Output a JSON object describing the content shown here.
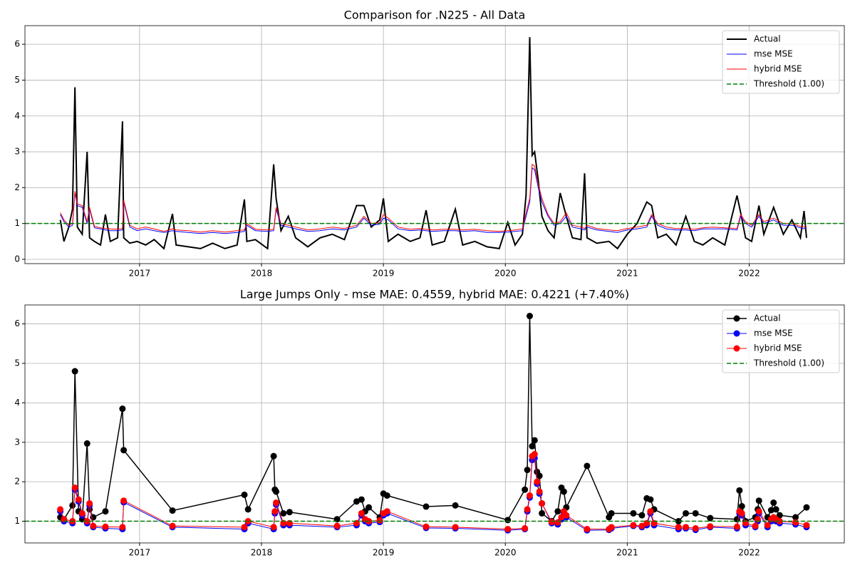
{
  "chart_data": [
    {
      "type": "line",
      "title": "Comparison for .N225 - All Data",
      "markers": false,
      "grid": true,
      "legend": "upper right",
      "xlim": [
        2016.06,
        2022.78
      ],
      "xticks": [
        2017,
        2018,
        2019,
        2020,
        2021,
        2022
      ],
      "ylim": [
        -0.12,
        6.52
      ],
      "yticks": [
        0,
        1,
        2,
        3,
        4,
        5,
        6
      ],
      "threshold": {
        "name": "Threshold (1.00)",
        "value": 1,
        "color": "#008000"
      },
      "x": [
        2016.35,
        2016.38,
        2016.42,
        2016.45,
        2016.47,
        2016.49,
        2016.53,
        2016.57,
        2016.59,
        2016.63,
        2016.68,
        2016.72,
        2016.76,
        2016.82,
        2016.86,
        2016.87,
        2016.92,
        2016.98,
        2017.05,
        2017.12,
        2017.2,
        2017.27,
        2017.3,
        2017.4,
        2017.5,
        2017.6,
        2017.7,
        2017.8,
        2017.86,
        2017.88,
        2017.95,
        2018.05,
        2018.1,
        2018.12,
        2018.16,
        2018.22,
        2018.28,
        2018.38,
        2018.48,
        2018.58,
        2018.68,
        2018.78,
        2018.84,
        2018.9,
        2018.97,
        2019.0,
        2019.04,
        2019.12,
        2019.22,
        2019.3,
        2019.35,
        2019.4,
        2019.5,
        2019.59,
        2019.65,
        2019.75,
        2019.85,
        2019.95,
        2020.02,
        2020.08,
        2020.14,
        2020.17,
        2020.2,
        2020.22,
        2020.24,
        2020.27,
        2020.3,
        2020.35,
        2020.4,
        2020.45,
        2020.5,
        2020.55,
        2020.62,
        2020.65,
        2020.67,
        2020.75,
        2020.85,
        2020.92,
        2021.0,
        2021.08,
        2021.16,
        2021.2,
        2021.25,
        2021.32,
        2021.4,
        2021.48,
        2021.55,
        2021.62,
        2021.7,
        2021.8,
        2021.9,
        2021.93,
        2021.97,
        2022.02,
        2022.08,
        2022.12,
        2022.2,
        2022.28,
        2022.35,
        2022.42,
        2022.45,
        2022.47
      ],
      "series": [
        {
          "name": "Actual",
          "color": "#000000",
          "width": 2,
          "values": [
            1.1,
            0.5,
            0.9,
            1.4,
            4.8,
            0.9,
            0.7,
            3.0,
            0.6,
            0.5,
            0.4,
            1.25,
            0.5,
            0.6,
            3.85,
            0.6,
            0.45,
            0.5,
            0.4,
            0.55,
            0.3,
            1.27,
            0.4,
            0.35,
            0.3,
            0.45,
            0.3,
            0.4,
            1.67,
            0.5,
            0.55,
            0.3,
            2.65,
            1.7,
            0.8,
            1.2,
            0.6,
            0.35,
            0.6,
            0.7,
            0.55,
            1.5,
            1.5,
            0.9,
            1.1,
            1.7,
            0.5,
            0.7,
            0.5,
            0.6,
            1.37,
            0.4,
            0.5,
            1.4,
            0.4,
            0.5,
            0.35,
            0.3,
            1.03,
            0.4,
            0.7,
            1.8,
            6.2,
            2.9,
            3.0,
            2.2,
            1.2,
            0.8,
            0.6,
            1.85,
            1.2,
            0.6,
            0.55,
            2.4,
            0.6,
            0.45,
            0.5,
            0.3,
            0.7,
            1.0,
            1.6,
            1.5,
            0.6,
            0.7,
            0.4,
            1.2,
            0.5,
            0.4,
            0.6,
            0.4,
            1.78,
            1.3,
            0.6,
            0.5,
            1.5,
            0.7,
            1.45,
            0.7,
            1.1,
            0.6,
            1.35,
            0.6
          ]
        },
        {
          "name": "mse MSE",
          "color": "#0000ff",
          "width": 1,
          "values": [
            1.25,
            1.05,
            0.9,
            0.95,
            1.85,
            1.5,
            1.45,
            1.0,
            1.4,
            0.88,
            0.85,
            0.82,
            0.8,
            0.8,
            0.82,
            1.6,
            0.9,
            0.8,
            0.85,
            0.8,
            0.75,
            0.8,
            0.78,
            0.75,
            0.72,
            0.75,
            0.72,
            0.75,
            0.78,
            0.95,
            0.8,
            0.78,
            0.8,
            1.4,
            0.95,
            0.9,
            0.85,
            0.78,
            0.8,
            0.85,
            0.82,
            0.9,
            1.15,
            0.95,
            0.98,
            1.15,
            1.1,
            0.85,
            0.8,
            0.82,
            0.8,
            0.78,
            0.8,
            0.8,
            0.78,
            0.8,
            0.75,
            0.75,
            0.76,
            0.78,
            0.8,
            1.2,
            1.6,
            2.55,
            2.5,
            2.0,
            1.6,
            1.2,
            0.95,
            1.0,
            1.2,
            0.9,
            0.85,
            0.82,
            0.9,
            0.82,
            0.78,
            0.75,
            0.82,
            0.85,
            0.9,
            1.2,
            0.95,
            0.85,
            0.82,
            0.82,
            0.8,
            0.85,
            0.85,
            0.85,
            0.82,
            1.2,
            1.0,
            0.9,
            1.2,
            1.0,
            1.1,
            0.95,
            0.95,
            0.88,
            0.85,
            0.88
          ]
        },
        {
          "name": "hybrid MSE",
          "color": "#ff0000",
          "width": 1,
          "values": [
            1.3,
            1.1,
            0.95,
            1.0,
            1.9,
            1.55,
            1.5,
            1.05,
            1.45,
            0.92,
            0.88,
            0.86,
            0.85,
            0.84,
            0.86,
            1.65,
            0.95,
            0.85,
            0.9,
            0.85,
            0.78,
            0.85,
            0.82,
            0.8,
            0.76,
            0.8,
            0.76,
            0.8,
            0.82,
            1.0,
            0.84,
            0.82,
            0.84,
            1.45,
            1.0,
            0.95,
            0.9,
            0.82,
            0.85,
            0.9,
            0.86,
            0.95,
            1.2,
            1.0,
            1.02,
            1.25,
            1.15,
            0.9,
            0.84,
            0.86,
            0.84,
            0.82,
            0.84,
            0.84,
            0.82,
            0.84,
            0.8,
            0.78,
            0.8,
            0.82,
            0.85,
            1.3,
            1.7,
            2.65,
            2.6,
            2.1,
            1.7,
            1.25,
            1.0,
            1.05,
            1.3,
            0.95,
            0.9,
            0.86,
            0.95,
            0.86,
            0.82,
            0.8,
            0.86,
            0.9,
            0.95,
            1.25,
            1.0,
            0.9,
            0.86,
            0.86,
            0.84,
            0.88,
            0.9,
            0.88,
            0.86,
            1.25,
            1.05,
            0.95,
            1.25,
            1.05,
            1.15,
            1.0,
            1.0,
            0.92,
            0.9,
            0.92
          ]
        }
      ]
    },
    {
      "type": "line",
      "title": "Large Jumps Only - mse MAE: 0.4559, hybrid MAE: 0.4221 (+7.40%)",
      "markers": true,
      "grid": true,
      "legend": "upper right",
      "xlim": [
        2016.06,
        2022.78
      ],
      "xticks": [
        2017,
        2018,
        2019,
        2020,
        2021,
        2022
      ],
      "ylim": [
        0.45,
        6.48
      ],
      "yticks": [
        1,
        2,
        3,
        4,
        5,
        6
      ],
      "threshold": {
        "name": "Threshold (1.00)",
        "value": 1,
        "color": "#008000"
      },
      "x": [
        2016.35,
        2016.38,
        2016.45,
        2016.47,
        2016.5,
        2016.53,
        2016.57,
        2016.59,
        2016.62,
        2016.72,
        2016.86,
        2016.87,
        2017.27,
        2017.86,
        2017.89,
        2018.1,
        2018.11,
        2018.12,
        2018.18,
        2018.23,
        2018.62,
        2018.78,
        2018.82,
        2018.85,
        2018.88,
        2018.97,
        2019.0,
        2019.03,
        2019.35,
        2019.59,
        2020.02,
        2020.16,
        2020.18,
        2020.2,
        2020.22,
        2020.24,
        2020.26,
        2020.28,
        2020.3,
        2020.38,
        2020.43,
        2020.46,
        2020.48,
        2020.5,
        2020.67,
        2020.85,
        2020.87,
        2021.05,
        2021.12,
        2021.16,
        2021.19,
        2021.22,
        2021.42,
        2021.48,
        2021.56,
        2021.68,
        2021.9,
        2021.92,
        2021.94,
        2021.97,
        2022.05,
        2022.07,
        2022.08,
        2022.15,
        2022.18,
        2022.2,
        2022.22,
        2022.25,
        2022.38,
        2022.47
      ],
      "series": [
        {
          "name": "Actual",
          "color": "#000000",
          "width": 1.5,
          "values": [
            1.1,
            1.05,
            1.4,
            4.8,
            1.25,
            1.05,
            2.97,
            1.3,
            1.1,
            1.25,
            3.85,
            2.8,
            1.27,
            1.67,
            1.3,
            2.65,
            1.8,
            1.75,
            1.2,
            1.23,
            1.05,
            1.5,
            1.55,
            1.25,
            1.35,
            1.1,
            1.7,
            1.65,
            1.37,
            1.4,
            1.03,
            1.8,
            2.3,
            6.2,
            2.9,
            3.05,
            2.25,
            2.15,
            1.2,
            1.0,
            1.25,
            1.85,
            1.75,
            1.35,
            2.4,
            1.1,
            1.2,
            1.2,
            1.15,
            1.58,
            1.55,
            1.3,
            1.0,
            1.2,
            1.2,
            1.08,
            1.05,
            1.78,
            1.38,
            1.0,
            1.1,
            1.3,
            1.52,
            1.1,
            1.28,
            1.47,
            1.3,
            1.15,
            1.1,
            1.35
          ]
        },
        {
          "name": "mse MSE",
          "color": "#0000ff",
          "width": 1,
          "values": [
            1.25,
            1.0,
            0.95,
            1.8,
            1.5,
            1.15,
            0.95,
            1.4,
            0.85,
            0.82,
            0.8,
            1.48,
            0.85,
            0.8,
            0.95,
            0.8,
            1.2,
            1.42,
            0.9,
            0.9,
            0.85,
            0.9,
            1.15,
            1.0,
            0.95,
            0.98,
            1.15,
            1.2,
            0.83,
            0.82,
            0.77,
            0.8,
            1.25,
            1.6,
            2.55,
            2.6,
            1.95,
            1.7,
            1.45,
            0.95,
            0.92,
            1.05,
            1.2,
            1.1,
            0.77,
            0.78,
            0.82,
            0.88,
            0.85,
            0.9,
            1.2,
            0.9,
            0.8,
            0.82,
            0.78,
            0.85,
            0.82,
            1.2,
            1.15,
            0.9,
            0.85,
            1.0,
            1.2,
            0.85,
            1.0,
            1.05,
            1.0,
            0.95,
            0.92,
            0.85
          ]
        },
        {
          "name": "hybrid MSE",
          "color": "#ff0000",
          "width": 1,
          "values": [
            1.3,
            1.05,
            1.0,
            1.85,
            1.55,
            1.2,
            1.0,
            1.45,
            0.88,
            0.86,
            0.85,
            1.52,
            0.88,
            0.85,
            1.0,
            0.85,
            1.25,
            1.47,
            0.95,
            0.95,
            0.88,
            0.95,
            1.2,
            1.05,
            1.0,
            1.02,
            1.2,
            1.25,
            0.86,
            0.85,
            0.8,
            0.82,
            1.3,
            1.65,
            2.65,
            2.7,
            2.0,
            1.75,
            1.45,
            0.98,
            0.97,
            1.1,
            1.25,
            1.15,
            0.8,
            0.8,
            0.85,
            0.9,
            0.88,
            0.95,
            1.25,
            0.95,
            0.85,
            0.85,
            0.82,
            0.87,
            0.86,
            1.25,
            1.2,
            0.95,
            0.88,
            1.05,
            1.25,
            0.9,
            1.05,
            1.1,
            1.05,
            1.0,
            0.97,
            0.9
          ]
        }
      ]
    }
  ]
}
